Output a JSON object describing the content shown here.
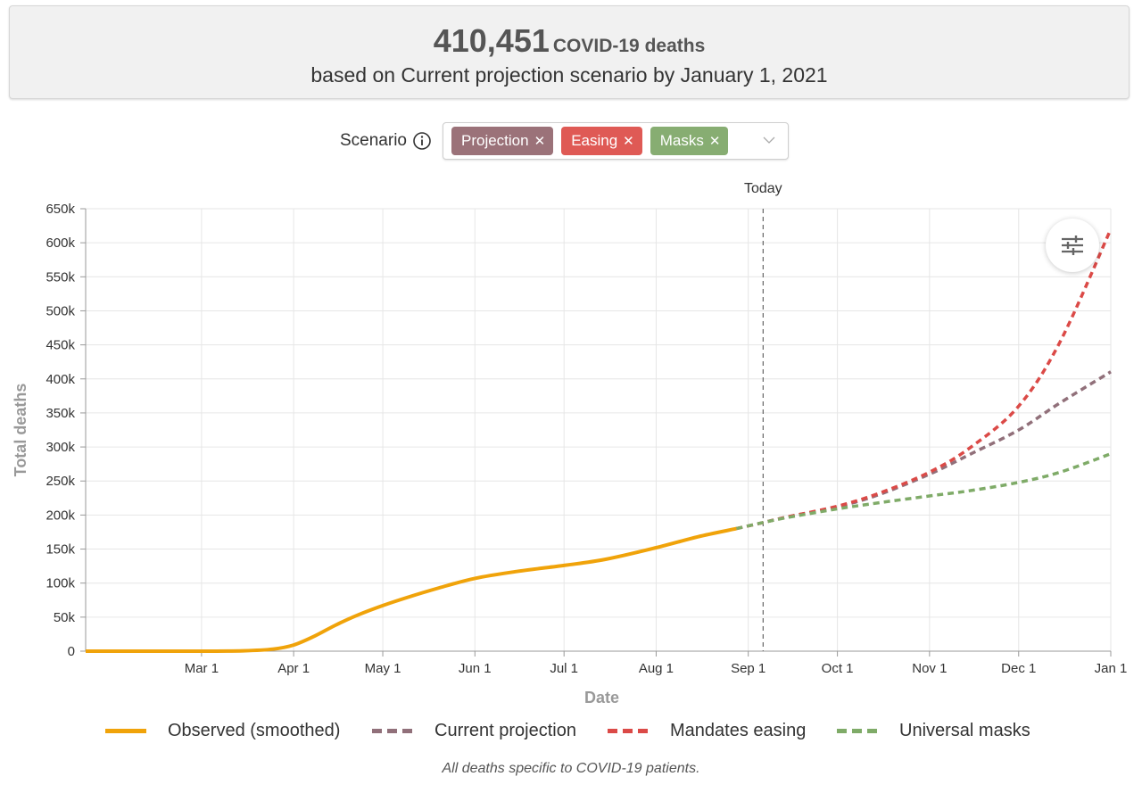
{
  "summary": {
    "count": "410,451",
    "unit": "COVID-19 deaths",
    "subtitle": "based on Current projection scenario by January 1, 2021"
  },
  "scenario": {
    "label": "Scenario",
    "tags": [
      {
        "label": "Projection",
        "color": "#9b7279"
      },
      {
        "label": "Easing",
        "color": "#df5a55"
      },
      {
        "label": "Masks",
        "color": "#87ad72"
      }
    ]
  },
  "colors": {
    "observed": "#f0a30a",
    "current": "#91707a",
    "easing": "#db4a47",
    "masks": "#7fab68"
  },
  "chart_data": {
    "type": "line",
    "xlabel": "Date",
    "ylabel": "Total deaths",
    "x_tick_labels": [
      "Mar 1",
      "Apr 1",
      "May 1",
      "Jun 1",
      "Jul 1",
      "Aug 1",
      "Sep 1",
      "Oct 1",
      "Nov 1",
      "Dec 1",
      "Jan 1"
    ],
    "x_tick_dates": [
      "2020-03-01",
      "2020-04-01",
      "2020-05-01",
      "2020-06-01",
      "2020-07-01",
      "2020-08-01",
      "2020-09-01",
      "2020-10-01",
      "2020-11-01",
      "2020-12-01",
      "2021-01-01"
    ],
    "xlim": [
      "2020-01-22",
      "2021-01-01"
    ],
    "ylim": [
      0,
      650000
    ],
    "y_ticks": [
      0,
      50000,
      100000,
      150000,
      200000,
      250000,
      300000,
      350000,
      400000,
      450000,
      500000,
      550000,
      600000,
      650000
    ],
    "y_tick_labels": [
      "0",
      "50k",
      "100k",
      "150k",
      "200k",
      "250k",
      "300k",
      "350k",
      "400k",
      "450k",
      "500k",
      "550k",
      "600k",
      "650k"
    ],
    "today_label": "Today",
    "today_date": "2020-09-06",
    "grid": true,
    "legend_position": "bottom",
    "series": [
      {
        "name": "Observed (smoothed)",
        "style": "solid",
        "points": [
          [
            "2020-01-22",
            0
          ],
          [
            "2020-03-01",
            0
          ],
          [
            "2020-03-15",
            500
          ],
          [
            "2020-03-25",
            3000
          ],
          [
            "2020-04-01",
            9000
          ],
          [
            "2020-04-08",
            22000
          ],
          [
            "2020-04-15",
            38000
          ],
          [
            "2020-04-22",
            52000
          ],
          [
            "2020-05-01",
            67000
          ],
          [
            "2020-05-10",
            80000
          ],
          [
            "2020-05-20",
            93000
          ],
          [
            "2020-06-01",
            107000
          ],
          [
            "2020-06-15",
            117000
          ],
          [
            "2020-07-01",
            126000
          ],
          [
            "2020-07-15",
            135000
          ],
          [
            "2020-08-01",
            152000
          ],
          [
            "2020-08-15",
            168000
          ],
          [
            "2020-08-28",
            180000
          ]
        ]
      },
      {
        "name": "Current projection",
        "style": "dashed",
        "points": [
          [
            "2020-08-28",
            180000
          ],
          [
            "2020-09-06",
            189000
          ],
          [
            "2020-09-15",
            198000
          ],
          [
            "2020-10-01",
            212000
          ],
          [
            "2020-10-15",
            230000
          ],
          [
            "2020-11-01",
            260000
          ],
          [
            "2020-11-15",
            290000
          ],
          [
            "2020-12-01",
            325000
          ],
          [
            "2020-12-15",
            365000
          ],
          [
            "2021-01-01",
            410451
          ]
        ]
      },
      {
        "name": "Mandates easing",
        "style": "dashed",
        "points": [
          [
            "2020-08-28",
            180000
          ],
          [
            "2020-09-06",
            189000
          ],
          [
            "2020-09-15",
            198000
          ],
          [
            "2020-10-01",
            213000
          ],
          [
            "2020-10-15",
            232000
          ],
          [
            "2020-11-01",
            263000
          ],
          [
            "2020-11-15",
            300000
          ],
          [
            "2020-12-01",
            360000
          ],
          [
            "2020-12-15",
            455000
          ],
          [
            "2021-01-01",
            620000
          ]
        ]
      },
      {
        "name": "Universal masks",
        "style": "dashed",
        "points": [
          [
            "2020-08-28",
            180000
          ],
          [
            "2020-09-06",
            189000
          ],
          [
            "2020-09-15",
            197000
          ],
          [
            "2020-10-01",
            209000
          ],
          [
            "2020-10-15",
            218000
          ],
          [
            "2020-11-01",
            228000
          ],
          [
            "2020-11-15",
            236000
          ],
          [
            "2020-12-01",
            248000
          ],
          [
            "2020-12-15",
            263000
          ],
          [
            "2021-01-01",
            290000
          ]
        ]
      }
    ]
  },
  "footnote": "All deaths specific to COVID-19 patients."
}
